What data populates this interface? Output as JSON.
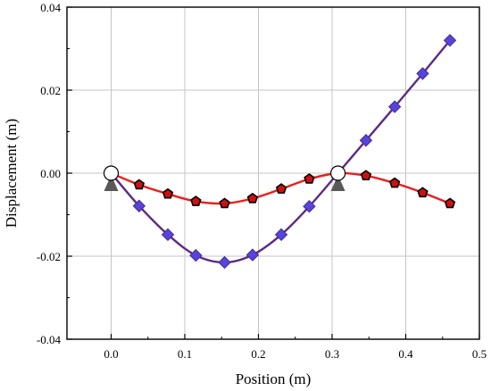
{
  "chart_data": {
    "type": "line",
    "xlabel": "Position (m)",
    "ylabel": "Displacement (m)",
    "xlim": [
      -0.06,
      0.5
    ],
    "ylim": [
      -0.04,
      0.04
    ],
    "xticks": [
      0.0,
      0.1,
      0.2,
      0.3,
      0.4,
      0.5
    ],
    "yticks": [
      -0.04,
      -0.02,
      0.0,
      0.02,
      0.04
    ],
    "xtick_labels": [
      "0.0",
      "0.1",
      "0.2",
      "0.3",
      "0.4",
      "0.5"
    ],
    "ytick_labels": [
      "-0.04",
      "-0.02",
      "0.00",
      "0.02",
      "0.04"
    ],
    "grid": true,
    "supports": [
      {
        "x": 0.0,
        "y": 0.0
      },
      {
        "x": 0.308,
        "y": 0.0
      }
    ],
    "series": [
      {
        "color": "#5b2a86",
        "marker": "diamond",
        "marker_color": "#5544dd",
        "x": [
          0.0,
          0.038,
          0.077,
          0.115,
          0.154,
          0.192,
          0.231,
          0.269,
          0.308,
          0.346,
          0.385,
          0.423,
          0.46
        ],
        "y": [
          0.0,
          -0.0079,
          -0.0148,
          -0.0198,
          -0.0215,
          -0.0197,
          -0.0148,
          -0.008,
          0.0,
          0.0079,
          0.016,
          0.024,
          0.032
        ]
      },
      {
        "color": "#ee1c1c",
        "marker": "pentagon",
        "marker_color": "#cc1111",
        "x": [
          0.0,
          0.038,
          0.077,
          0.115,
          0.154,
          0.192,
          0.231,
          0.269,
          0.308,
          0.346,
          0.385,
          0.423,
          0.46
        ],
        "y": [
          0.0,
          -0.0028,
          -0.005,
          -0.0068,
          -0.0073,
          -0.0061,
          -0.0038,
          -0.0014,
          0.0,
          -0.0006,
          -0.0024,
          -0.0047,
          -0.0073
        ]
      }
    ]
  }
}
